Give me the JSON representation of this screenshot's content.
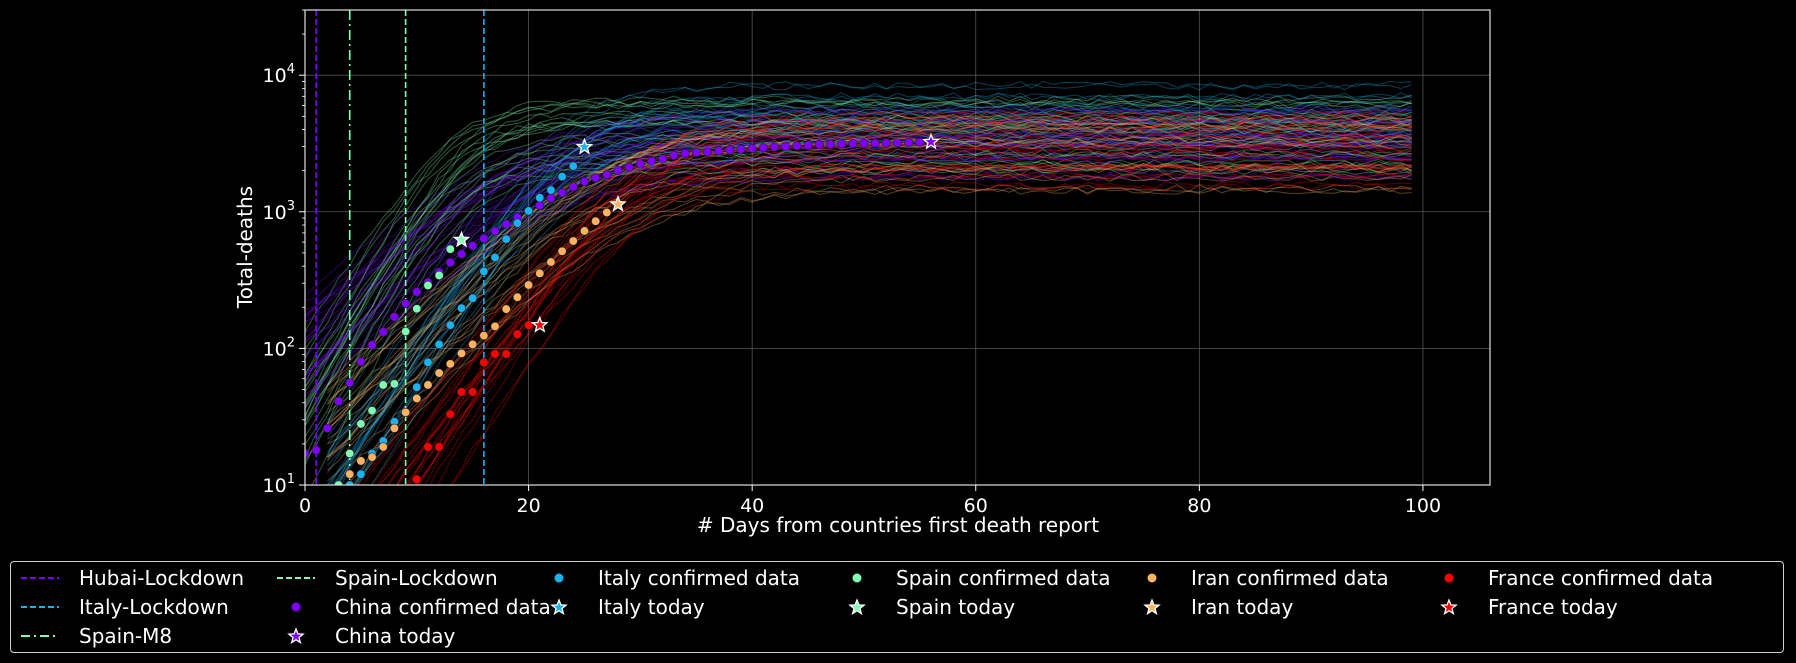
{
  "chart_data": {
    "type": "scatter",
    "title": "",
    "xlabel": "# Days from countries first death report",
    "ylabel": "Total-deaths",
    "xlim": [
      0,
      106
    ],
    "ylim": [
      10,
      30000
    ],
    "yscale": "log",
    "grid": true,
    "xticks": [
      0,
      20,
      40,
      60,
      80,
      100
    ],
    "xtick_labels": [
      "0",
      "20",
      "40",
      "60",
      "80",
      "100"
    ],
    "yticks": [
      10,
      100,
      1000,
      10000
    ],
    "ytick_labels": [
      {
        "base": "10",
        "exp": "1"
      },
      {
        "base": "10",
        "exp": "2"
      },
      {
        "base": "10",
        "exp": "3"
      },
      {
        "base": "10",
        "exp": "4"
      }
    ],
    "vlines": [
      {
        "name": "Hubai-Lockdown",
        "x": 1,
        "color": "#8000ff",
        "style": "dashed"
      },
      {
        "name": "Italy-Lockdown",
        "x": 16,
        "color": "#1ab2f2",
        "style": "dashed"
      },
      {
        "name": "Spain-M8",
        "x": 4,
        "color": "#80ffb4",
        "style": "dashdot"
      },
      {
        "name": "Spain-Lockdown",
        "x": 9,
        "color": "#80ffb4",
        "style": "dashed"
      }
    ],
    "series": [
      {
        "name": "China confirmed data",
        "country": "China",
        "color": "#8000ff",
        "shift": 0,
        "A": 3300,
        "k": 0.17,
        "t0": 20,
        "x": [
          0,
          1,
          2,
          3,
          4,
          5,
          6,
          7,
          8,
          9,
          10,
          11,
          12,
          13,
          14,
          15,
          16,
          17,
          18,
          19,
          20,
          21,
          22,
          23,
          24,
          25,
          26,
          27,
          28,
          29,
          30,
          31,
          32,
          33,
          34,
          35,
          36,
          37,
          38,
          39,
          40,
          41,
          42,
          43,
          44,
          45,
          46,
          47,
          48,
          49,
          50,
          51,
          52,
          53,
          54,
          55,
          56
        ],
        "values": [
          17,
          18,
          26,
          41,
          56,
          80,
          106,
          132,
          170,
          213,
          259,
          304,
          361,
          425,
          490,
          563,
          637,
          722,
          811,
          908,
          1016,
          1113,
          1259,
          1380,
          1523,
          1665,
          1770,
          1868,
          2004,
          2118,
          2236,
          2345,
          2442,
          2592,
          2663,
          2715,
          2744,
          2788,
          2835,
          2870,
          2912,
          2943,
          2981,
          3013,
          3045,
          3073,
          3100,
          3123,
          3140,
          3162,
          3173,
          3180,
          3194,
          3204,
          3218,
          3231,
          3245
        ]
      },
      {
        "name": "Italy confirmed data",
        "country": "Italy",
        "color": "#1ab2f2",
        "shift": 2,
        "A": 4600,
        "k": 0.28,
        "t0": 24,
        "x": [
          3,
          4,
          5,
          6,
          7,
          8,
          9,
          10,
          11,
          12,
          13,
          14,
          15,
          16,
          17,
          18,
          19,
          20,
          21,
          22,
          23,
          24,
          25
        ],
        "values": [
          7,
          10,
          12,
          17,
          21,
          29,
          34,
          52,
          79,
          107,
          148,
          197,
          233,
          366,
          463,
          631,
          827,
          1016,
          1266,
          1441,
          1809,
          2158,
          2978
        ]
      },
      {
        "name": "Spain confirmed data",
        "country": "Spain",
        "color": "#80ffb4",
        "shift": 0,
        "A": 3600,
        "k": 0.33,
        "t0": 14,
        "x": [
          2,
          3,
          4,
          5,
          6,
          7,
          8,
          9,
          10,
          11,
          12,
          13,
          14
        ],
        "values": [
          8,
          10,
          17,
          28,
          35,
          54,
          55,
          133,
          195,
          289,
          342,
          533,
          623
        ]
      },
      {
        "name": "Iran confirmed data",
        "country": "Iran",
        "color": "#ffb360",
        "shift": 2,
        "A": 2700,
        "k": 0.19,
        "t0": 28,
        "x": [
          3,
          4,
          5,
          6,
          7,
          8,
          9,
          10,
          11,
          12,
          13,
          14,
          15,
          16,
          17,
          18,
          19,
          20,
          21,
          22,
          23,
          24,
          25,
          26,
          27,
          28
        ],
        "values": [
          8,
          12,
          15,
          16,
          19,
          26,
          34,
          43,
          54,
          66,
          77,
          92,
          107,
          124,
          145,
          194,
          237,
          291,
          354,
          429,
          514,
          611,
          724,
          853,
          988,
          1135
        ]
      },
      {
        "name": "France confirmed data",
        "country": "France",
        "color": "#ff0000",
        "shift": 0,
        "A": 2800,
        "k": 0.27,
        "t0": 30,
        "x": [
          10,
          11,
          12,
          13,
          14,
          15,
          16,
          17,
          18,
          19,
          20,
          21
        ],
        "values": [
          11,
          19,
          19,
          33,
          48,
          48,
          79,
          91,
          91,
          127,
          148,
          148
        ]
      }
    ],
    "today": [
      {
        "name": "China today",
        "x": 56,
        "y": 3245,
        "color": "#8000ff"
      },
      {
        "name": "Italy today",
        "x": 25,
        "y": 2978,
        "color": "#1ab2f2"
      },
      {
        "name": "Spain today",
        "x": 14,
        "y": 623,
        "color": "#80ffb4"
      },
      {
        "name": "Iran today",
        "x": 28,
        "y": 1135,
        "color": "#ffb360"
      },
      {
        "name": "France today",
        "x": 21,
        "y": 148,
        "color": "#ff0000"
      }
    ],
    "ensemble": {
      "count": 25,
      "x_end": 99
    }
  },
  "legend": {
    "placement": "bottom",
    "columns": [
      [
        {
          "label": "Hubai-Lockdown",
          "kind": "dashed",
          "color": "#8000ff"
        },
        {
          "label": "Italy-Lockdown",
          "kind": "dashed",
          "color": "#1ab2f2"
        },
        {
          "label": "Spain-M8",
          "kind": "dashdot",
          "color": "#80ffb4"
        }
      ],
      [
        {
          "label": "Spain-Lockdown",
          "kind": "dashed",
          "color": "#80ffb4"
        },
        {
          "label": "China confirmed data",
          "kind": "dot",
          "color": "#8000ff"
        },
        {
          "label": "China today",
          "kind": "star",
          "color": "#8000ff"
        }
      ],
      [
        {
          "label": "Italy confirmed data",
          "kind": "dot",
          "color": "#1ab2f2"
        },
        {
          "label": "Italy today",
          "kind": "star",
          "color": "#1ab2f2"
        }
      ],
      [
        {
          "label": "Spain confirmed data",
          "kind": "dot",
          "color": "#80ffb4"
        },
        {
          "label": "Spain today",
          "kind": "star",
          "color": "#80ffb4"
        }
      ],
      [
        {
          "label": "Iran confirmed data",
          "kind": "dot",
          "color": "#ffb360"
        },
        {
          "label": "Iran today",
          "kind": "star",
          "color": "#ffb360"
        }
      ],
      [
        {
          "label": "France confirmed data",
          "kind": "dot",
          "color": "#ff0000"
        },
        {
          "label": "France today",
          "kind": "star",
          "color": "#ff0000"
        }
      ]
    ]
  }
}
